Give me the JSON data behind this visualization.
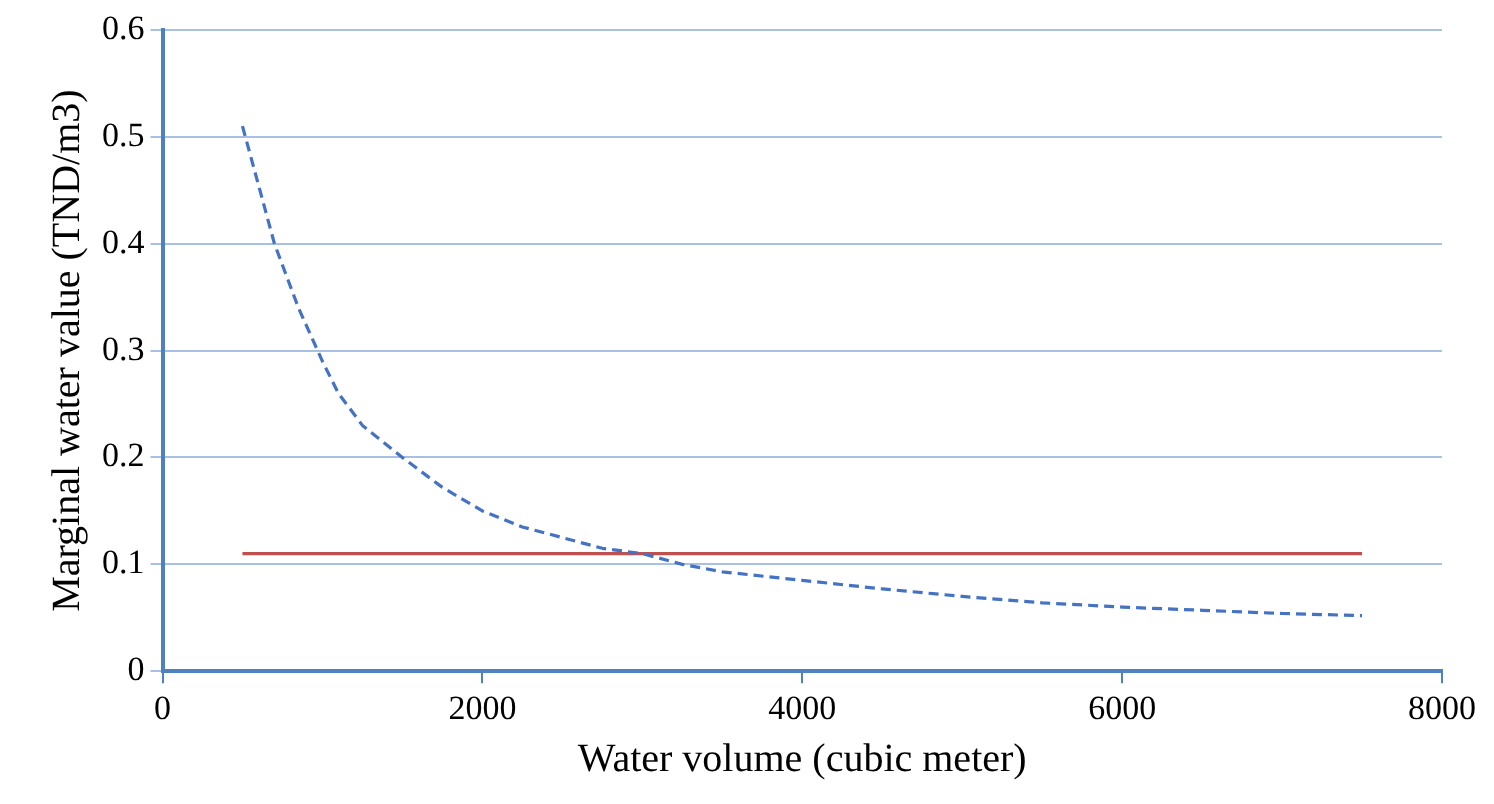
{
  "chart_data": {
    "type": "line",
    "xlabel": "Water volume (cubic meter)",
    "ylabel": "Marginal water value (TND/m3)",
    "xlim": [
      0,
      8000
    ],
    "xticks": [
      0,
      2000,
      4000,
      6000,
      8000
    ],
    "ylim": [
      0,
      0.6
    ],
    "yticks": [
      0,
      0.1,
      0.2,
      0.3,
      0.4,
      0.5,
      0.6
    ],
    "grid": "y",
    "legend": false,
    "marker": "none",
    "series": [
      {
        "color": "#4472c4",
        "line_style": "dashed",
        "x": [
          500,
          700,
          850,
          1000,
          1100,
          1250,
          1500,
          1750,
          2000,
          2250,
          2500,
          2750,
          3000,
          3250,
          3500,
          4000,
          4500,
          5000,
          5500,
          6000,
          6500,
          7000,
          7500
        ],
        "values": [
          0.51,
          0.4,
          0.34,
          0.29,
          0.26,
          0.23,
          0.2,
          0.172,
          0.15,
          0.135,
          0.125,
          0.115,
          0.11,
          0.1,
          0.093,
          0.085,
          0.077,
          0.07,
          0.064,
          0.06,
          0.057,
          0.054,
          0.052
        ]
      },
      {
        "color": "#c0504d",
        "line_style": "solid",
        "x": [
          500,
          7500
        ],
        "values": [
          0.11,
          0.11
        ]
      }
    ]
  }
}
